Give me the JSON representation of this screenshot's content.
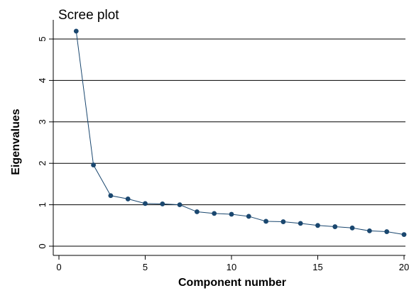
{
  "chart_data": {
    "type": "line",
    "title": "Scree plot",
    "xlabel": "Component number",
    "ylabel": "Eigenvalues",
    "xlim": [
      0,
      20
    ],
    "ylim": [
      0,
      5
    ],
    "x_ticks": [
      0,
      5,
      10,
      15,
      20
    ],
    "y_ticks": [
      0,
      1,
      2,
      3,
      4,
      5
    ],
    "x_tick_labels": [
      "0",
      "5",
      "10",
      "15",
      "20"
    ],
    "y_tick_labels": [
      "0",
      "1",
      "2",
      "3",
      "4",
      "5"
    ],
    "grid": "horizontal",
    "series": [
      {
        "color": "#1a476f",
        "x": [
          1,
          2,
          3,
          4,
          5,
          6,
          7,
          8,
          9,
          10,
          11,
          12,
          13,
          14,
          15,
          16,
          17,
          18,
          19,
          20
        ],
        "y": [
          5.19,
          1.96,
          1.22,
          1.14,
          1.03,
          1.02,
          1.0,
          0.83,
          0.79,
          0.77,
          0.72,
          0.6,
          0.59,
          0.55,
          0.5,
          0.47,
          0.44,
          0.37,
          0.35,
          0.28
        ]
      }
    ]
  }
}
